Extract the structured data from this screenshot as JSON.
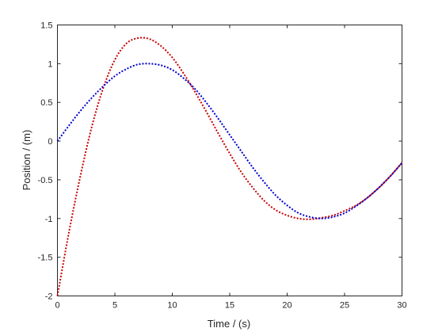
{
  "chart_data": {
    "type": "line",
    "title": "",
    "xlabel": "Time / (s)",
    "ylabel": "Position / (m)",
    "xlim": [
      0,
      30
    ],
    "ylim": [
      -2,
      1.5
    ],
    "xticks": [
      0,
      5,
      10,
      15,
      20,
      25,
      30
    ],
    "yticks": [
      -2,
      -1.5,
      -1,
      -0.5,
      0,
      0.5,
      1,
      1.5
    ],
    "xtick_labels": [
      "0",
      "5",
      "10",
      "15",
      "20",
      "25",
      "30"
    ],
    "ytick_labels": [
      "-2",
      "-1.5",
      "-1",
      "-0.5",
      "0",
      "0.5",
      "1",
      "1.5"
    ],
    "grid": false,
    "line_style": "dotted",
    "series": [
      {
        "color": "#cc0000",
        "x": [
          0,
          1,
          2,
          3,
          4,
          5,
          6,
          7,
          8,
          9,
          10,
          11,
          12,
          13,
          14,
          15,
          16,
          17,
          18,
          19,
          20,
          21,
          22,
          23,
          24,
          25,
          26,
          27,
          28,
          29,
          30
        ],
        "y": [
          -2.0,
          -1.18,
          -0.45,
          0.19,
          0.69,
          1.05,
          1.26,
          1.33,
          1.32,
          1.23,
          1.08,
          0.87,
          0.63,
          0.37,
          0.1,
          -0.16,
          -0.4,
          -0.6,
          -0.77,
          -0.89,
          -0.96,
          -1.0,
          -1.01,
          -0.99,
          -0.96,
          -0.9,
          -0.83,
          -0.73,
          -0.6,
          -0.45,
          -0.28
        ]
      },
      {
        "color": "#0000cc",
        "x": [
          0,
          1,
          2,
          3,
          4,
          5,
          6,
          7,
          8,
          9,
          10,
          11,
          12,
          13,
          14,
          15,
          16,
          17,
          18,
          19,
          20,
          21,
          22,
          23,
          24,
          25,
          26,
          27,
          28,
          29,
          30
        ],
        "y": [
          0.0,
          0.2,
          0.39,
          0.56,
          0.71,
          0.84,
          0.93,
          0.99,
          1.0,
          0.98,
          0.92,
          0.81,
          0.67,
          0.49,
          0.29,
          0.08,
          -0.13,
          -0.34,
          -0.53,
          -0.7,
          -0.83,
          -0.93,
          -0.98,
          -1.0,
          -0.98,
          -0.93,
          -0.84,
          -0.73,
          -0.6,
          -0.45,
          -0.28
        ]
      }
    ]
  }
}
